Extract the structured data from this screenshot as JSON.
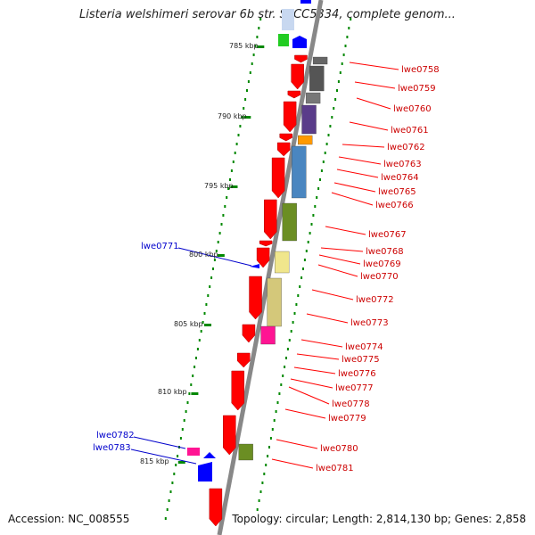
{
  "title": "Listeria welshimeri serovar 6b str. SLCC5334, complete genom...",
  "footer": {
    "accession": "Accession: NC_008555",
    "topology": "Topology: circular; Length: 2,814,130 bp; Genes: 2,858"
  },
  "colors": {
    "forward_gene": "#ff0000",
    "reverse_gene": "#0000ff",
    "tick": "#008800",
    "backbone": "#888888",
    "label_forward": "#cc0000",
    "label_reverse": "#0000cc"
  },
  "scale_labels": [
    "785 kbp",
    "790 kbp",
    "795 kbp",
    "800 kbp",
    "805 kbp",
    "810 kbp",
    "815 kbp"
  ],
  "red_labels": [
    "lwe0758",
    "lwe0759",
    "lwe0760",
    "lwe0761",
    "lwe0762",
    "lwe0763",
    "lwe0764",
    "lwe0765",
    "lwe0766",
    "lwe0767",
    "lwe0768",
    "lwe0769",
    "lwe0770",
    "lwe0772",
    "lwe0773",
    "lwe0774",
    "lwe0775",
    "lwe0776",
    "lwe0777",
    "lwe0778",
    "lwe0779",
    "lwe0780",
    "lwe0781"
  ],
  "blue_labels": [
    "lwe0771",
    "lwe0782",
    "lwe0783"
  ]
}
